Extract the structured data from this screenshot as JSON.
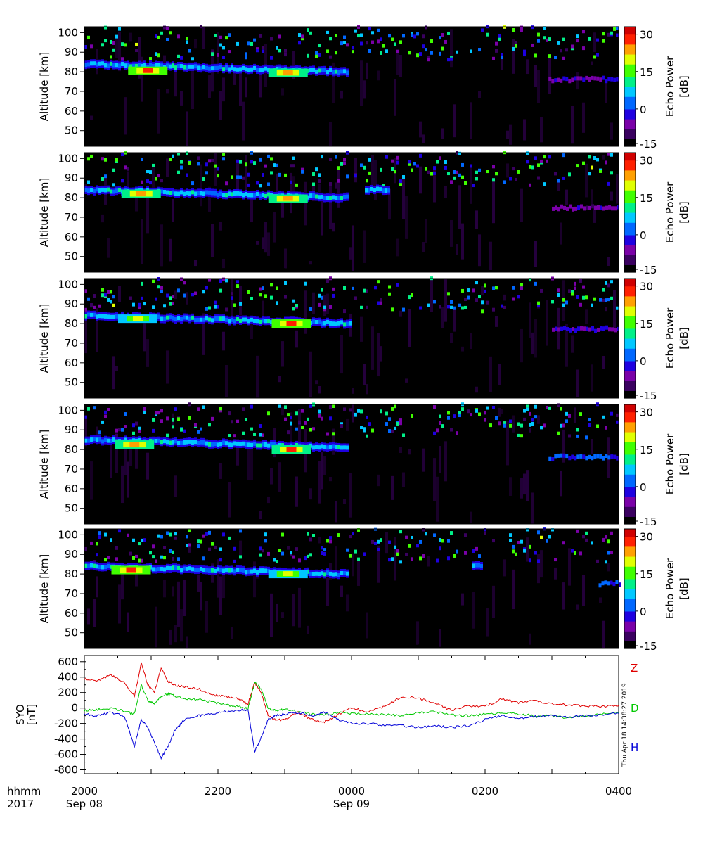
{
  "chart_data": [
    {
      "type": "heatmap",
      "panel": 1,
      "ylabel": "Altitude [km]",
      "yticks": [
        50,
        60,
        70,
        80,
        90,
        100
      ],
      "ylim": [
        42,
        103
      ],
      "colorbar": {
        "label_line1": "Echo Power",
        "label_line2": "[dB]",
        "ticks": [
          30,
          15,
          0,
          -15
        ],
        "range": [
          -15,
          33
        ]
      },
      "echo_layer": {
        "segments": [
          {
            "start_hour": 20.0,
            "end_hour": 23.95,
            "altitude_start_km": 84,
            "altitude_end_km": 80
          }
        ],
        "hotspots": [
          {
            "time_hour": 20.95,
            "altitude_km": 80.5,
            "power_db": 28
          },
          {
            "time_hour": 23.05,
            "altitude_km": 79.5,
            "power_db": 25
          }
        ]
      },
      "late_layer": {
        "start_hour": 26.95,
        "end_hour": 28.0,
        "altitude_km": 76,
        "power_db": -5
      }
    },
    {
      "type": "heatmap",
      "panel": 2,
      "ylabel": "Altitude [km]",
      "yticks": [
        50,
        60,
        70,
        80,
        90,
        100
      ],
      "ylim": [
        42,
        103
      ],
      "colorbar": {
        "label_line1": "Echo Power",
        "label_line2": "[dB]",
        "ticks": [
          30,
          15,
          0,
          -15
        ],
        "range": [
          -15,
          33
        ]
      },
      "echo_layer": {
        "segments": [
          {
            "start_hour": 20.0,
            "end_hour": 23.95,
            "altitude_start_km": 84,
            "altitude_end_km": 80
          },
          {
            "start_hour": 24.2,
            "end_hour": 24.55,
            "altitude_start_km": 84,
            "altitude_end_km": 84
          }
        ],
        "hotspots": [
          {
            "time_hour": 20.85,
            "altitude_km": 82.0,
            "power_db": 25
          },
          {
            "time_hour": 23.05,
            "altitude_km": 79.5,
            "power_db": 24
          }
        ]
      },
      "late_layer": {
        "start_hour": 27.0,
        "end_hour": 28.0,
        "altitude_km": 75,
        "power_db": -6
      }
    },
    {
      "type": "heatmap",
      "panel": 3,
      "ylabel": "Altitude [km]",
      "yticks": [
        50,
        60,
        70,
        80,
        90,
        100
      ],
      "ylim": [
        42,
        103
      ],
      "colorbar": {
        "label_line1": "Echo Power",
        "label_line2": "[dB]",
        "ticks": [
          30,
          15,
          0,
          -15
        ],
        "range": [
          -15,
          33
        ]
      },
      "echo_layer": {
        "segments": [
          {
            "start_hour": 20.0,
            "end_hour": 24.0,
            "altitude_start_km": 84,
            "altitude_end_km": 80
          }
        ],
        "hotspots": [
          {
            "time_hour": 20.8,
            "altitude_km": 82.5,
            "power_db": 22
          },
          {
            "time_hour": 23.1,
            "altitude_km": 80.0,
            "power_db": 28
          }
        ]
      },
      "late_layer": {
        "start_hour": 27.0,
        "end_hour": 28.0,
        "altitude_km": 77,
        "power_db": -4
      }
    },
    {
      "type": "heatmap",
      "panel": 4,
      "ylabel": "Altitude [km]",
      "yticks": [
        50,
        60,
        70,
        80,
        90,
        100
      ],
      "ylim": [
        42,
        103
      ],
      "colorbar": {
        "label_line1": "Echo Power",
        "label_line2": "[dB]",
        "ticks": [
          30,
          15,
          0,
          -15
        ],
        "range": [
          -15,
          33
        ]
      },
      "echo_layer": {
        "segments": [
          {
            "start_hour": 20.0,
            "end_hour": 23.95,
            "altitude_start_km": 85,
            "altitude_end_km": 81
          }
        ],
        "hotspots": [
          {
            "time_hour": 20.75,
            "altitude_km": 82.5,
            "power_db": 24
          },
          {
            "time_hour": 23.1,
            "altitude_km": 80.0,
            "power_db": 27
          }
        ]
      },
      "late_layer": {
        "start_hour": 26.95,
        "end_hour": 28.0,
        "altitude_km": 76,
        "power_db": 0
      }
    },
    {
      "type": "heatmap",
      "panel": 5,
      "ylabel": "Altitude [km]",
      "yticks": [
        50,
        60,
        70,
        80,
        90,
        100
      ],
      "ylim": [
        42,
        103
      ],
      "colorbar": {
        "label_line1": "Echo Power",
        "label_line2": "[dB]",
        "ticks": [
          30,
          15,
          0,
          -15
        ],
        "range": [
          -15,
          33
        ]
      },
      "echo_layer": {
        "segments": [
          {
            "start_hour": 20.0,
            "end_hour": 23.95,
            "altitude_start_km": 84,
            "altitude_end_km": 80
          },
          {
            "start_hour": 25.8,
            "end_hour": 25.95,
            "altitude_start_km": 84,
            "altitude_end_km": 84
          }
        ],
        "hotspots": [
          {
            "time_hour": 20.7,
            "altitude_km": 82.0,
            "power_db": 28
          },
          {
            "time_hour": 23.05,
            "altitude_km": 80.0,
            "power_db": 22
          }
        ]
      },
      "late_layer": {
        "start_hour": 27.7,
        "end_hour": 28.0,
        "altitude_km": 75,
        "power_db": 2
      }
    },
    {
      "type": "line",
      "panel": 6,
      "ylabel_line1": "SYO",
      "ylabel_line2": "[nT]",
      "yticks": [
        600,
        400,
        200,
        0,
        -200,
        -400,
        -600,
        -800
      ],
      "ylim": [
        -850,
        680
      ],
      "x_unit": "hours since 2017-09-08 00:00 UT",
      "series": [
        {
          "name": "Z",
          "color": "#e00000",
          "x": [
            20.0,
            20.2,
            20.4,
            20.6,
            20.75,
            20.85,
            20.95,
            21.05,
            21.15,
            21.25,
            21.35,
            21.5,
            21.7,
            21.9,
            22.1,
            22.3,
            22.45,
            22.55,
            22.65,
            22.75,
            22.85,
            23.0,
            23.2,
            23.4,
            23.6,
            23.8,
            24.0,
            24.25,
            24.5,
            24.75,
            25.0,
            25.25,
            25.5,
            25.75,
            26.0,
            26.25,
            26.5,
            26.75,
            27.0,
            27.25,
            27.5,
            27.75,
            28.0
          ],
          "y": [
            380,
            350,
            430,
            320,
            150,
            580,
            300,
            200,
            520,
            350,
            300,
            270,
            250,
            170,
            150,
            120,
            50,
            330,
            200,
            -100,
            -150,
            -150,
            -50,
            -150,
            -180,
            -80,
            0,
            -50,
            20,
            150,
            130,
            60,
            -30,
            30,
            20,
            120,
            70,
            90,
            50,
            40,
            25,
            20,
            30
          ]
        },
        {
          "name": "D",
          "color": "#00c800",
          "x": [
            20.0,
            20.2,
            20.4,
            20.6,
            20.75,
            20.85,
            20.95,
            21.05,
            21.15,
            21.25,
            21.35,
            21.5,
            21.7,
            21.9,
            22.1,
            22.3,
            22.45,
            22.55,
            22.65,
            22.75,
            22.85,
            23.0,
            23.2,
            23.4,
            23.6,
            23.8,
            24.0,
            24.25,
            24.5,
            24.75,
            25.0,
            25.25,
            25.5,
            25.75,
            26.0,
            26.25,
            26.5,
            26.75,
            27.0,
            27.25,
            27.5,
            27.75,
            28.0
          ],
          "y": [
            -30,
            -20,
            0,
            -40,
            -80,
            300,
            100,
            50,
            150,
            180,
            160,
            120,
            110,
            80,
            40,
            20,
            -10,
            330,
            250,
            0,
            -30,
            -20,
            -40,
            -80,
            -90,
            -60,
            -70,
            -80,
            -80,
            -100,
            -60,
            -50,
            -90,
            -100,
            -80,
            -60,
            -80,
            -100,
            -100,
            -130,
            -110,
            -80,
            -60
          ]
        },
        {
          "name": "H",
          "color": "#0000d8",
          "x": [
            20.0,
            20.2,
            20.4,
            20.6,
            20.75,
            20.85,
            20.95,
            21.05,
            21.15,
            21.25,
            21.35,
            21.5,
            21.7,
            21.9,
            22.1,
            22.3,
            22.45,
            22.55,
            22.65,
            22.75,
            22.85,
            23.0,
            23.2,
            23.4,
            23.6,
            23.8,
            24.0,
            24.25,
            24.5,
            24.75,
            25.0,
            25.25,
            25.5,
            25.75,
            26.0,
            26.25,
            26.5,
            26.75,
            27.0,
            27.25,
            27.5,
            27.75,
            28.0
          ],
          "y": [
            -80,
            -100,
            -60,
            -100,
            -500,
            -150,
            -250,
            -450,
            -650,
            -500,
            -300,
            -150,
            -100,
            -80,
            -50,
            -30,
            -30,
            -560,
            -380,
            -150,
            -100,
            -80,
            -60,
            -100,
            -50,
            -150,
            -200,
            -200,
            -220,
            -230,
            -250,
            -230,
            -250,
            -230,
            -150,
            -100,
            -130,
            -110,
            -100,
            -120,
            -100,
            -90,
            -70
          ]
        }
      ]
    }
  ],
  "series_labels": {
    "z": "Z",
    "d": "D",
    "h": "H"
  },
  "stamp": "Thu Apr 18 14:38:27 2019",
  "xaxis": {
    "row_label": "hhmm",
    "year_label": "2017",
    "ticks": [
      {
        "time": "2000",
        "date": "Sep 08"
      },
      {
        "time": "2200",
        "date": ""
      },
      {
        "time": "0000",
        "date": "Sep 09"
      },
      {
        "time": "0200",
        "date": ""
      },
      {
        "time": "0400",
        "date": ""
      }
    ]
  },
  "colors": {
    "plot_background": "#000000",
    "colormap": [
      "#000000",
      "#3a0060",
      "#7a00a8",
      "#1e00e0",
      "#0068ff",
      "#00c8ff",
      "#00f088",
      "#40ff00",
      "#e0ff00",
      "#ffa000",
      "#ff2000",
      "#d00000"
    ]
  }
}
